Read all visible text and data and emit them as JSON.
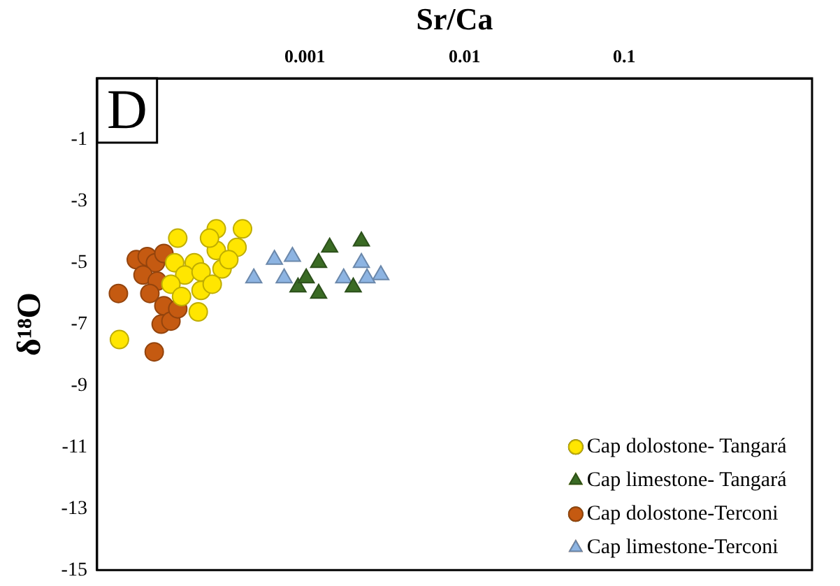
{
  "chart_data": {
    "type": "scatter",
    "xlabel": "Sr/Ca",
    "ylabel": "δ¹⁸O",
    "log": "x",
    "xlim": [
      5e-05,
      1.5
    ],
    "xticks": [
      0.001,
      0.01,
      0.1
    ],
    "ylim": [
      -15,
      1
    ],
    "yticks": [
      -15,
      -13,
      -11,
      -9,
      -7,
      -5,
      -3,
      -1
    ],
    "grid": false,
    "legend": "bottom right",
    "annotations": [
      "D"
    ],
    "series": [
      {
        "name": "Cap dolostone- Tangará",
        "marker": "circle",
        "color": "#ffe600",
        "x": [
          6.9e-05,
          0.00016,
          0.000279,
          0.000407,
          0.000376,
          0.000279,
          0.000203,
          0.000153,
          0.000177,
          0.000224,
          0.000303,
          0.000145,
          0.000224,
          0.000169,
          0.000215,
          0.000263,
          0.000334,
          0.000253
        ],
        "values": [
          -7.5,
          -4.2,
          -3.9,
          -3.9,
          -4.5,
          -4.6,
          -5.0,
          -5.0,
          -5.4,
          -5.3,
          -5.2,
          -5.7,
          -5.9,
          -6.1,
          -6.6,
          -5.7,
          -4.9,
          -4.2
        ]
      },
      {
        "name": "Cap limestone- Tangará",
        "marker": "triangle",
        "color": "#3a6b24",
        "x": [
          0.00143,
          0.00226,
          0.00122,
          0.000906,
          0.00122,
          0.00201,
          0.00102
        ],
        "values": [
          -4.5,
          -4.3,
          -5.0,
          -5.8,
          -6.0,
          -5.8,
          -5.5
        ]
      },
      {
        "name": "Cap dolostone-Terconi",
        "marker": "circle",
        "color": "#c55a11",
        "x": [
          6.8e-05,
          0.000114,
          8.8e-05,
          0.000103,
          0.000116,
          0.000131,
          9.7e-05,
          0.000119,
          0.000107,
          0.000131,
          0.000126,
          0.000145,
          0.00016
        ],
        "values": [
          -6.0,
          -7.9,
          -4.9,
          -4.8,
          -5.0,
          -4.7,
          -5.4,
          -5.6,
          -6.0,
          -6.4,
          -7.0,
          -6.9,
          -6.5
        ]
      },
      {
        "name": "Cap limestone-Terconi",
        "marker": "triangle",
        "color": "#8db4e2",
        "x": [
          0.000479,
          0.000645,
          0.000836,
          0.000742,
          0.00175,
          0.00226,
          0.00299,
          0.00245
        ],
        "values": [
          -5.5,
          -4.9,
          -4.8,
          -5.5,
          -5.5,
          -5.0,
          -5.4,
          -5.5
        ]
      }
    ]
  }
}
